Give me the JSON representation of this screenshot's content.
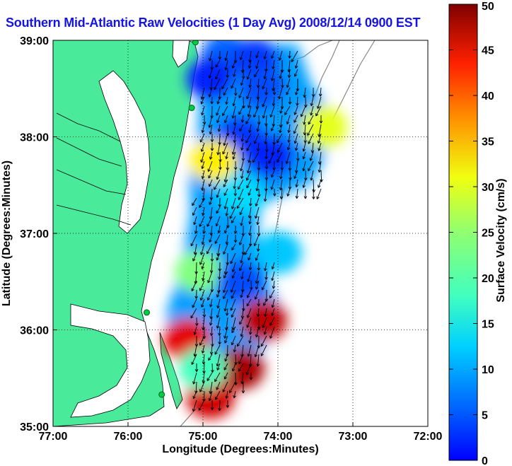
{
  "chart_data": {
    "type": "heatmap",
    "title": "Southern Mid-Atlantic Raw Velocities (1 Day Avg) 2008/12/14 0900 EST",
    "xlabel": "Longitude (Degrees:Minutes)",
    "ylabel": "Latitude (Degrees:Minutes)",
    "xlim": [
      -77,
      -72
    ],
    "ylim": [
      35,
      39
    ],
    "x_ticks": [
      {
        "value": -77,
        "label": "77:00"
      },
      {
        "value": -76,
        "label": "76:00"
      },
      {
        "value": -75,
        "label": "75:00"
      },
      {
        "value": -74,
        "label": "74:00"
      },
      {
        "value": -73,
        "label": "73:00"
      },
      {
        "value": -72,
        "label": "72:00"
      }
    ],
    "y_ticks": [
      {
        "value": 35,
        "label": "35:00"
      },
      {
        "value": 36,
        "label": "36:00"
      },
      {
        "value": 37,
        "label": "37:00"
      },
      {
        "value": 38,
        "label": "38:00"
      },
      {
        "value": 39,
        "label": "39:00"
      }
    ],
    "grid": "dotted",
    "colorbar": {
      "label": "Surface Velocity (cm/s)",
      "min": 0,
      "max": 50,
      "ticks": [
        "0",
        "5",
        "10",
        "15",
        "20",
        "25",
        "30",
        "35",
        "40",
        "45",
        "50"
      ],
      "colormap": "jet"
    },
    "speed_field": [
      {
        "lat": 38.85,
        "lon": -74.7,
        "speed": 11
      },
      {
        "lat": 38.8,
        "lon": -74.3,
        "speed": 9
      },
      {
        "lat": 38.6,
        "lon": -74.9,
        "speed": 8
      },
      {
        "lat": 38.5,
        "lon": -74.2,
        "speed": 10
      },
      {
        "lat": 38.3,
        "lon": -73.7,
        "speed": 14
      },
      {
        "lat": 38.1,
        "lon": -73.4,
        "speed": 30
      },
      {
        "lat": 38.0,
        "lon": -74.5,
        "speed": 9
      },
      {
        "lat": 37.8,
        "lon": -74.1,
        "speed": 8
      },
      {
        "lat": 37.75,
        "lon": -74.85,
        "speed": 32
      },
      {
        "lat": 37.4,
        "lon": -74.5,
        "speed": 17
      },
      {
        "lat": 37.0,
        "lon": -74.6,
        "speed": 14
      },
      {
        "lat": 36.8,
        "lon": -74.0,
        "speed": 16
      },
      {
        "lat": 36.6,
        "lon": -75.05,
        "speed": 25
      },
      {
        "lat": 36.5,
        "lon": -74.5,
        "speed": 10
      },
      {
        "lat": 36.1,
        "lon": -74.2,
        "speed": 47
      },
      {
        "lat": 35.9,
        "lon": -75.2,
        "speed": 45
      },
      {
        "lat": 35.6,
        "lon": -74.5,
        "speed": 48
      },
      {
        "lat": 35.3,
        "lon": -74.9,
        "speed": 46
      },
      {
        "lat": 35.6,
        "lon": -75.0,
        "speed": 22
      }
    ],
    "stations": [
      {
        "lat": 38.98,
        "lon": -75.1
      },
      {
        "lat": 38.3,
        "lon": -75.15
      },
      {
        "lat": 36.18,
        "lon": -75.75
      },
      {
        "lat": 35.33,
        "lon": -75.55
      }
    ]
  }
}
